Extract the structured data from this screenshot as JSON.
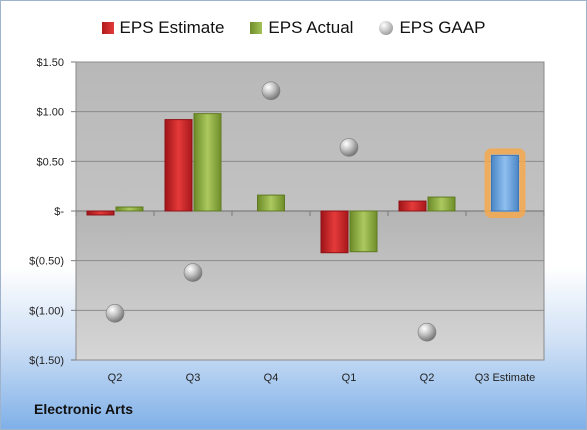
{
  "chart_data": {
    "type": "bar",
    "categories": [
      "Q2",
      "Q3",
      "Q4",
      "Q1",
      "Q2",
      "Q3 Estimate"
    ],
    "series": [
      {
        "name": "EPS Estimate",
        "kind": "bar",
        "color": "#c0272d",
        "values": [
          -0.04,
          0.92,
          null,
          -0.42,
          0.1,
          null
        ]
      },
      {
        "name": "EPS Actual",
        "kind": "bar",
        "color": "#8db23f",
        "values": [
          0.04,
          0.98,
          0.16,
          -0.41,
          0.14,
          null
        ]
      },
      {
        "name": "EPS GAAP",
        "kind": "marker",
        "color": "#a6a6a6",
        "values": [
          -1.03,
          -0.62,
          1.21,
          0.64,
          -1.22,
          null
        ]
      },
      {
        "name": "Q3 Estimate",
        "kind": "highlight-bar",
        "color": "#5b9bd5",
        "values": [
          null,
          null,
          null,
          null,
          null,
          0.56
        ]
      }
    ],
    "ylim": [
      -1.5,
      1.5
    ],
    "yticks": [
      1.5,
      1.0,
      0.5,
      0,
      -0.5,
      -1.0,
      -1.5
    ],
    "ytick_labels": [
      "$1.50",
      "$1.00",
      "$0.50",
      "$-",
      "$(0.50)",
      "$(1.00)",
      "$(1.50)"
    ],
    "grid": true,
    "legend_position": "top",
    "title": "",
    "xlabel": "",
    "ylabel": ""
  },
  "legend": {
    "estimate": "EPS Estimate",
    "actual": "EPS Actual",
    "gaap": "EPS GAAP"
  },
  "footer": {
    "company": "Electronic Arts"
  }
}
